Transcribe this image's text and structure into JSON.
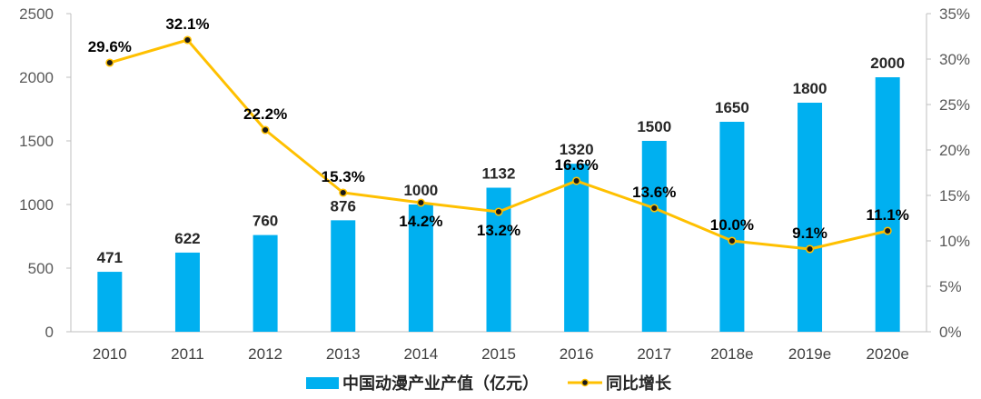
{
  "chart_data": {
    "type": "bar+line",
    "categories": [
      "2010",
      "2011",
      "2012",
      "2013",
      "2014",
      "2015",
      "2016",
      "2017",
      "2018e",
      "2019e",
      "2020e"
    ],
    "series": [
      {
        "name": "中国动漫产业产值（亿元）",
        "type": "bar",
        "axis": "left",
        "color": "#00B0F0",
        "values": [
          471,
          622,
          760,
          876,
          1000,
          1132,
          1320,
          1500,
          1650,
          1800,
          2000
        ],
        "labels": [
          "471",
          "622",
          "760",
          "876",
          "1000",
          "1132",
          "1320",
          "1500",
          "1650",
          "1800",
          "2000"
        ]
      },
      {
        "name": "同比增长",
        "type": "line",
        "axis": "right",
        "color": "#FFC000",
        "values": [
          29.6,
          32.1,
          22.2,
          15.3,
          14.2,
          13.2,
          16.6,
          13.6,
          10.0,
          9.1,
          11.1
        ],
        "labels": [
          "29.6%",
          "32.1%",
          "22.2%",
          "15.3%",
          "14.2%",
          "13.2%",
          "16.6%",
          "13.6%",
          "10.0%",
          "9.1%",
          "11.1%"
        ]
      }
    ],
    "y_left": {
      "min": 0,
      "max": 2500,
      "ticks": [
        "0",
        "500",
        "1000",
        "1500",
        "2000",
        "2500"
      ]
    },
    "y_right": {
      "min": 0,
      "max": 35,
      "ticks": [
        "0%",
        "5%",
        "10%",
        "15%",
        "20%",
        "25%",
        "30%",
        "35%"
      ]
    },
    "grid": false,
    "legend": "bottom-center"
  }
}
